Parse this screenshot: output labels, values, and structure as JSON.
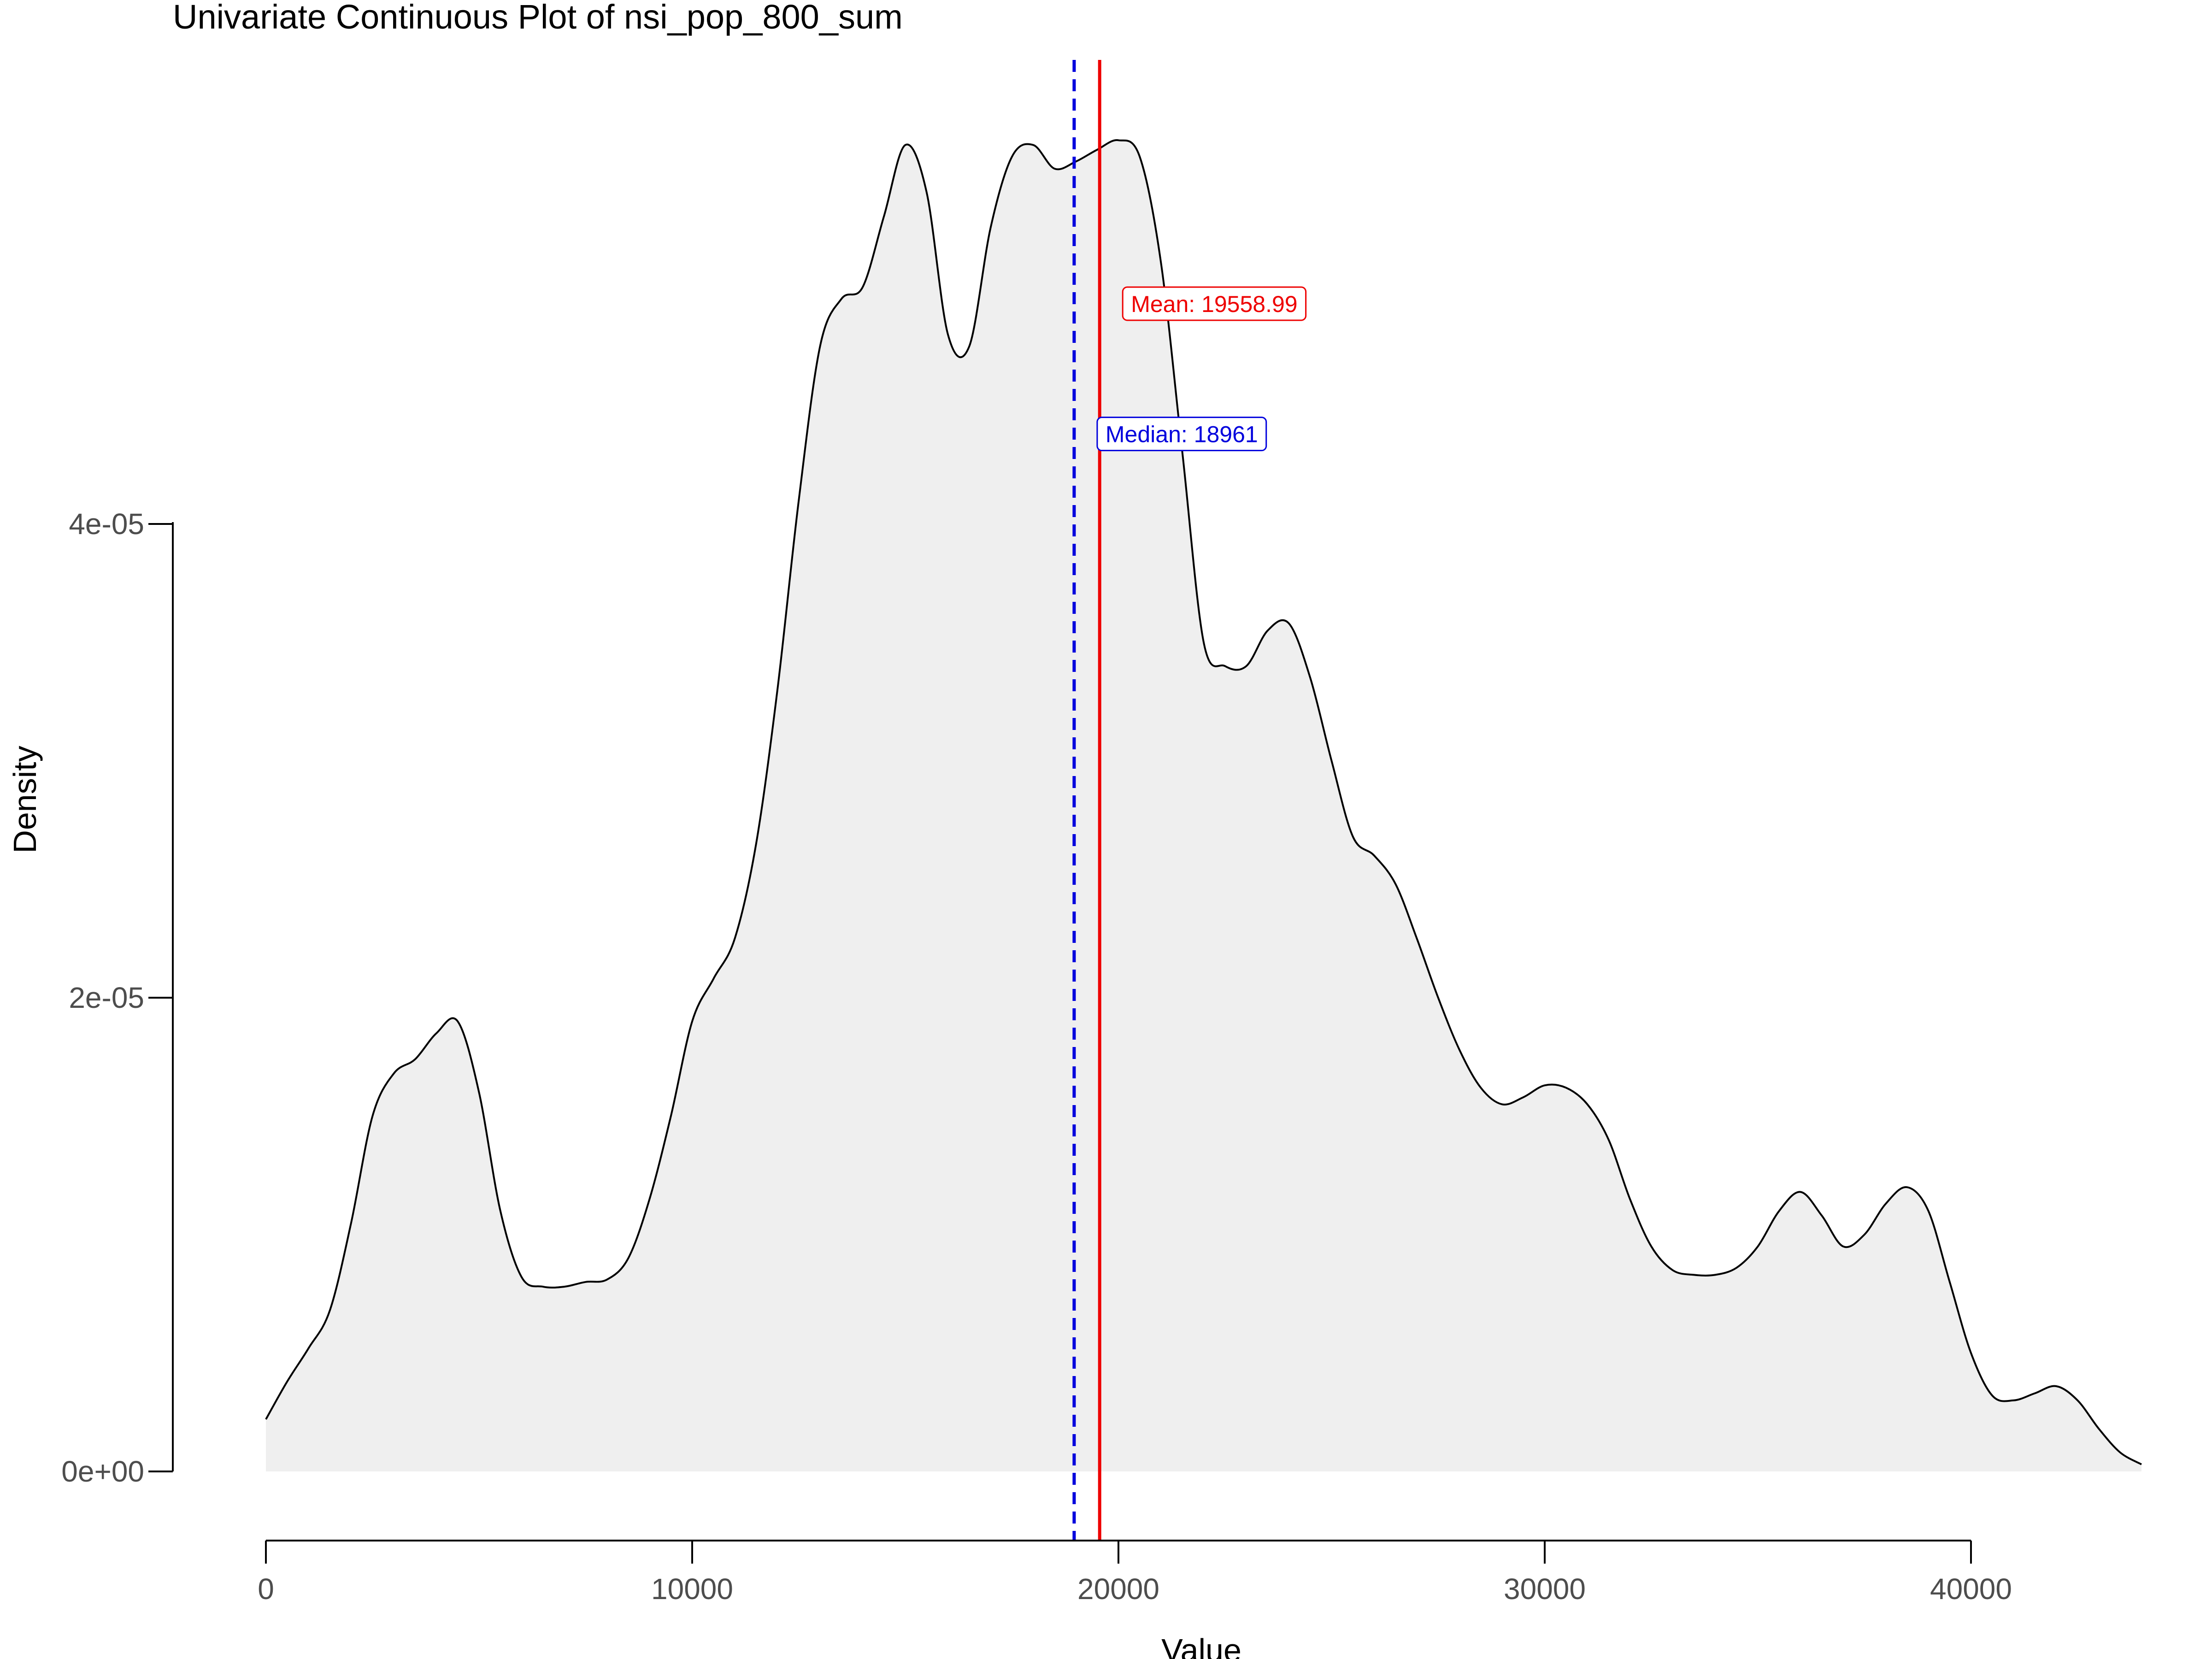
{
  "chart_data": {
    "type": "area",
    "title": "Univariate Continuous Plot of nsi_pop_800_sum",
    "xlabel": "Value",
    "ylabel": "Density",
    "xlim": [
      0,
      44000
    ],
    "ylim": [
      0,
      6e-05
    ],
    "x_ticks": [
      {
        "value": 0,
        "label": "0"
      },
      {
        "value": 10000,
        "label": "10000"
      },
      {
        "value": 20000,
        "label": "20000"
      },
      {
        "value": 30000,
        "label": "30000"
      },
      {
        "value": 40000,
        "label": "40000"
      }
    ],
    "y_ticks": [
      {
        "value": 0,
        "label": "0e+00"
      },
      {
        "value": 2e-05,
        "label": "2e-05"
      },
      {
        "value": 4e-05,
        "label": "4e-05"
      }
    ],
    "grid": false,
    "legend": "none",
    "fill_color": "#efefef",
    "line_color": "#000000",
    "series": [
      {
        "x": [
          0,
          500,
          1000,
          1500,
          2000,
          2500,
          3000,
          3500,
          4000,
          4500,
          5000,
          5500,
          6000,
          6500,
          7000,
          7500,
          8000,
          8500,
          9000,
          9500,
          10000,
          10500,
          11000,
          11500,
          12000,
          12500,
          13000,
          13500,
          14000,
          14500,
          15000,
          15500,
          16000,
          16500,
          17000,
          17500,
          18000,
          18500,
          19000,
          19500,
          20000,
          20500,
          21000,
          21500,
          22000,
          22500,
          23000,
          23500,
          24000,
          24500,
          25000,
          25500,
          26000,
          26500,
          27000,
          27500,
          28000,
          28500,
          29000,
          29500,
          30000,
          30500,
          31000,
          31500,
          32000,
          32500,
          33000,
          33500,
          34000,
          34500,
          35000,
          35500,
          36000,
          36500,
          37000,
          37500,
          38000,
          38500,
          39000,
          39500,
          40000,
          40500,
          41000,
          41500,
          42000,
          42500,
          43000,
          43500,
          44000
        ],
        "y": [
          2.2e-06,
          3.8e-06,
          5.2e-06,
          6.8e-06,
          1.05e-05,
          1.5e-05,
          1.68e-05,
          1.74e-05,
          1.85e-05,
          1.9e-05,
          1.6e-05,
          1.1e-05,
          8.2e-06,
          7.8e-06,
          7.8e-06,
          8e-06,
          8.1e-06,
          9e-06,
          1.15e-05,
          1.5e-05,
          1.9e-05,
          2.08e-05,
          2.25e-05,
          2.65e-05,
          3.3e-05,
          4.1e-05,
          4.75e-05,
          4.95e-05,
          5e-05,
          5.3e-05,
          5.6e-05,
          5.4e-05,
          4.8e-05,
          4.75e-05,
          5.25e-05,
          5.55e-05,
          5.6e-05,
          5.5e-05,
          5.53e-05,
          5.58e-05,
          5.62e-05,
          5.55e-05,
          5.1e-05,
          4.3e-05,
          3.5e-05,
          3.4e-05,
          3.4e-05,
          3.55e-05,
          3.58e-05,
          3.35e-05,
          3e-05,
          2.68e-05,
          2.6e-05,
          2.48e-05,
          2.25e-05,
          2e-05,
          1.78e-05,
          1.62e-05,
          1.55e-05,
          1.58e-05,
          1.63e-05,
          1.62e-05,
          1.55e-05,
          1.4e-05,
          1.15e-05,
          9.5e-06,
          8.5e-06,
          8.3e-06,
          8.3e-06,
          8.6e-06,
          9.5e-06,
          1.1e-05,
          1.18e-05,
          1.08e-05,
          9.5e-06,
          1e-05,
          1.13e-05,
          1.2e-05,
          1.1e-05,
          8e-06,
          5e-06,
          3.2e-06,
          3e-06,
          3.3e-06,
          3.6e-06,
          3e-06,
          1.8e-06,
          8e-07,
          3e-07
        ]
      }
    ],
    "reference_lines": [
      {
        "value": 19558.99,
        "label": "Mean: 19558.99",
        "color": "#ee0000",
        "style": "solid",
        "label_y": 4.93e-05
      },
      {
        "value": 18961,
        "label": "Median: 18961",
        "color": "#0000dd",
        "style": "dashed",
        "label_y": 4.38e-05
      }
    ]
  }
}
